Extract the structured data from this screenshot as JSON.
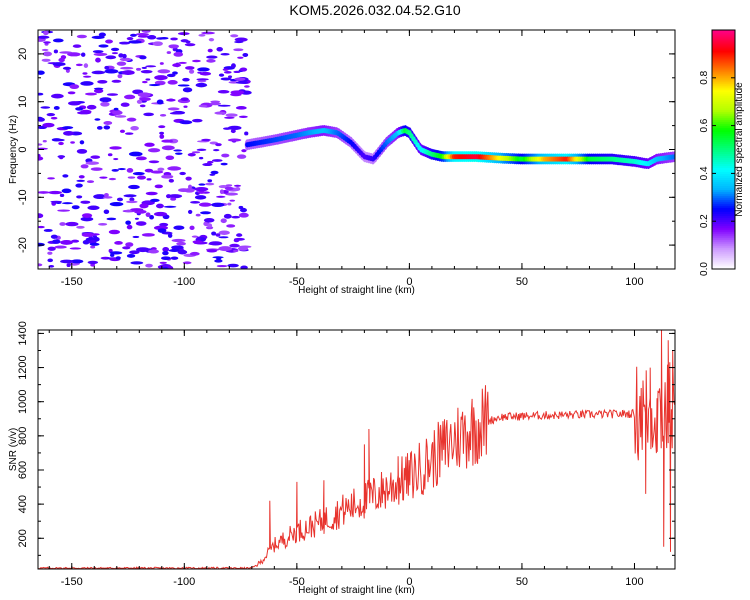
{
  "figure": {
    "title": "KOM5.2026.032.04.52.G10"
  },
  "chart_data": [
    {
      "type": "heatmap",
      "title": "KOM5.2026.032.04.52.G10",
      "xlabel": "Height of straight line (km)",
      "ylabel": "Frequency (Hz)",
      "xlim": [
        -165,
        118
      ],
      "ylim": [
        -25,
        25
      ],
      "xticks": [
        -150,
        -100,
        -50,
        0,
        50,
        100
      ],
      "yticks": [
        -20,
        -10,
        0,
        10,
        20
      ],
      "colorbar": {
        "label": "Normalized spectral amplitude",
        "range": [
          0.0,
          1.0
        ],
        "ticks": [
          0.0,
          0.2,
          0.4,
          0.6,
          0.8
        ],
        "colors": [
          "#ffffff",
          "#cc99ff",
          "#8000ff",
          "#0000ff",
          "#00b4ff",
          "#00ffff",
          "#00ff80",
          "#00ff00",
          "#b4ff00",
          "#ffff00",
          "#ff8000",
          "#ff0000",
          "#ff0080"
        ]
      },
      "noise_region": {
        "x_range": [
          -165,
          -72
        ],
        "level": 0.12
      },
      "ridge": {
        "x": [
          -72,
          -60,
          -50,
          -45,
          -38,
          -32,
          -26,
          -20,
          -16,
          -10,
          -5,
          -2,
          0,
          5,
          10,
          15,
          20,
          30,
          40,
          50,
          60,
          70,
          80,
          90,
          100,
          106,
          110,
          118
        ],
        "frequency": [
          1,
          2,
          3,
          3.5,
          4,
          3.5,
          1.5,
          -1.5,
          -2,
          1.5,
          3.5,
          4,
          3.5,
          0,
          -1,
          -1.5,
          -1.5,
          -1.5,
          -1.8,
          -2,
          -2,
          -2,
          -2,
          -2,
          -2.5,
          -3,
          -2,
          -1.5
        ],
        "amplitude": [
          0.25,
          0.28,
          0.3,
          0.32,
          0.35,
          0.3,
          0.25,
          0.2,
          0.22,
          0.3,
          0.35,
          0.55,
          0.5,
          0.4,
          0.5,
          0.6,
          0.9,
          0.95,
          0.75,
          0.55,
          0.8,
          0.9,
          0.55,
          0.5,
          0.45,
          0.4,
          0.35,
          0.3
        ]
      }
    },
    {
      "type": "line",
      "xlabel": "Height of straight line (km)",
      "ylabel": "SNR (v/v)",
      "xlim": [
        -165,
        118
      ],
      "ylim": [
        20,
        1420
      ],
      "xticks": [
        -150,
        -100,
        -50,
        0,
        50,
        100
      ],
      "yticks": [
        200,
        400,
        600,
        800,
        1000,
        1200,
        1400
      ],
      "color": "#e8332d",
      "trend": {
        "x": [
          -165,
          -70,
          -66,
          -60,
          -50,
          -40,
          -30,
          -20,
          -10,
          0,
          10,
          20,
          30,
          40,
          60,
          80,
          100,
          102,
          118
        ],
        "y": [
          25,
          25,
          60,
          160,
          240,
          290,
          360,
          420,
          490,
          560,
          660,
          780,
          860,
          910,
          920,
          925,
          930,
          940,
          950
        ]
      },
      "spikes": [
        {
          "x": -62,
          "y": 420
        },
        {
          "x": -50,
          "y": 530
        },
        {
          "x": -38,
          "y": 540
        },
        {
          "x": -20,
          "y": 750
        },
        {
          "x": -18,
          "y": 840
        },
        {
          "x": -5,
          "y": 680
        },
        {
          "x": 103,
          "y": 1080
        },
        {
          "x": 105,
          "y": 460
        },
        {
          "x": 107,
          "y": 1200
        },
        {
          "x": 110,
          "y": 1020
        },
        {
          "x": 112,
          "y": 1420
        },
        {
          "x": 113,
          "y": 150
        },
        {
          "x": 115,
          "y": 1360
        },
        {
          "x": 116,
          "y": 120
        },
        {
          "x": 117,
          "y": 1300
        }
      ]
    }
  ]
}
